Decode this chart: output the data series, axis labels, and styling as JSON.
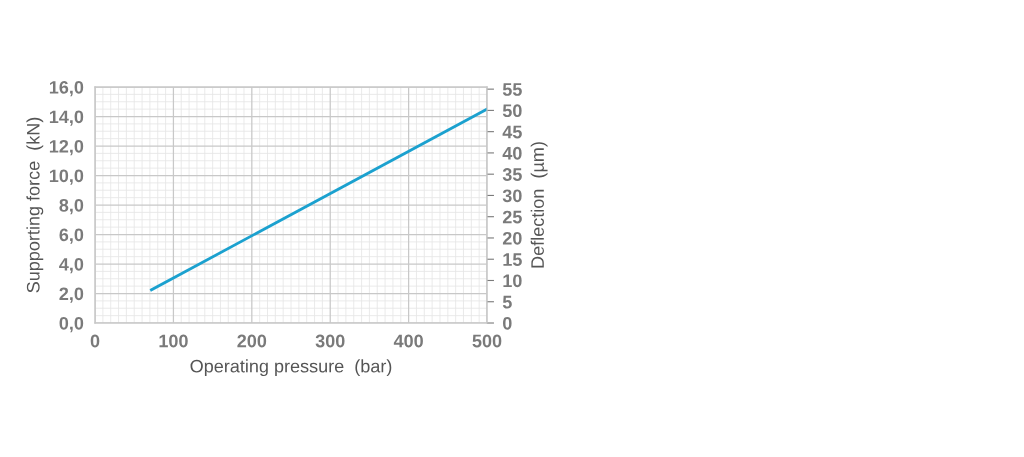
{
  "chart_data": {
    "type": "line",
    "xlabel": "Operating pressure  (bar)",
    "ylabel": "Supporting force  (kN)",
    "y2label": "Deflection  (µm)",
    "series": [
      {
        "color": "#1ba1cf",
        "x": [
          72,
          500
        ],
        "values": [
          2.25,
          14.5
        ]
      }
    ],
    "xlim": [
      0,
      500
    ],
    "xticks": [
      0,
      100,
      200,
      300,
      400,
      500
    ],
    "ylim": [
      0,
      16
    ],
    "yticks": [
      {
        "value": 0,
        "label": "0,0"
      },
      {
        "value": 2,
        "label": "2,0"
      },
      {
        "value": 4,
        "label": "4,0"
      },
      {
        "value": 6,
        "label": "6,0"
      },
      {
        "value": 8,
        "label": "8,0"
      },
      {
        "value": 10,
        "label": "10,0"
      },
      {
        "value": 12,
        "label": "12,0"
      },
      {
        "value": 14,
        "label": "14,0"
      },
      {
        "value": 16,
        "label": "16,0"
      }
    ],
    "y2lim": [
      0,
      55.5
    ],
    "y2ticks": [
      0,
      5,
      10,
      15,
      20,
      25,
      30,
      35,
      40,
      45,
      50,
      55
    ],
    "grid": true,
    "marker": "none",
    "line_style": "solid"
  }
}
